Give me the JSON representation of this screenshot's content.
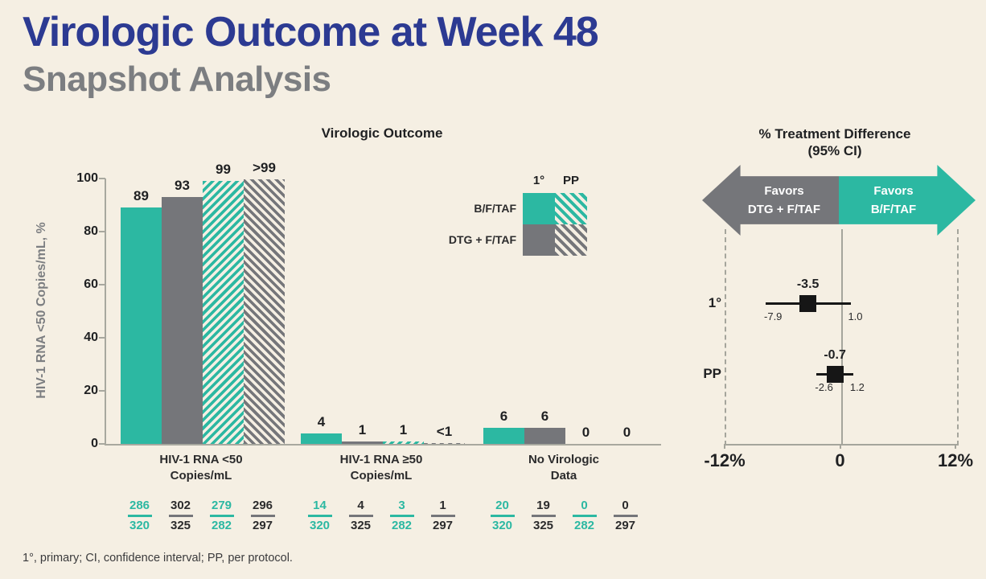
{
  "page": {
    "title": "Virologic Outcome at Week 48",
    "subtitle": "Snapshot Analysis",
    "footnote": "1°, primary; CI, confidence interval; PP, per protocol."
  },
  "colors": {
    "background": "#f5efe3",
    "title_navy": "#2c3a92",
    "subtitle_gray": "#7c7e81",
    "teal": "#2cb8a2",
    "gray": "#75767a",
    "ink": "#1f2022",
    "axis_gray": "#a8a89f",
    "arrow_text": "#ffffff",
    "forest_marker": "#161616"
  },
  "chart_data": [
    {
      "type": "bar",
      "title": "Virologic Outcome",
      "ylabel": "HIV-1 RNA <50 Copies/mL, %",
      "ylim": [
        0,
        100
      ],
      "yticks": [
        0,
        20,
        40,
        60,
        80,
        100
      ],
      "series": [
        "B/F/TAF 1°",
        "DTG + F/TAF 1°",
        "B/F/TAF PP",
        "DTG + F/TAF PP"
      ],
      "legend": {
        "col_headers": [
          "1°",
          "PP"
        ],
        "rows": [
          {
            "label": "B/F/TAF",
            "color": "teal"
          },
          {
            "label": "DTG + F/TAF",
            "color": "gray"
          }
        ]
      },
      "groups": [
        {
          "category": [
            "HIV-1 RNA <50",
            "Copies/mL"
          ],
          "bars": [
            {
              "display": "89",
              "value": 89,
              "style": "teal-solid",
              "fraction": {
                "n": "286",
                "d": "320"
              }
            },
            {
              "display": "93",
              "value": 93,
              "style": "gray-solid",
              "fraction": {
                "n": "302",
                "d": "325"
              }
            },
            {
              "display": "99",
              "value": 99,
              "style": "teal-hatch",
              "fraction": {
                "n": "279",
                "d": "282"
              }
            },
            {
              "display": ">99",
              "value": 99.7,
              "style": "gray-hatch",
              "fraction": {
                "n": "296",
                "d": "297"
              }
            }
          ]
        },
        {
          "category": [
            "HIV-1 RNA ≥50",
            "Copies/mL"
          ],
          "bars": [
            {
              "display": "4",
              "value": 4,
              "style": "teal-solid",
              "fraction": {
                "n": "14",
                "d": "320"
              }
            },
            {
              "display": "1",
              "value": 1,
              "style": "gray-solid",
              "fraction": {
                "n": "4",
                "d": "325"
              }
            },
            {
              "display": "1",
              "value": 1,
              "style": "teal-hatch",
              "fraction": {
                "n": "3",
                "d": "282"
              }
            },
            {
              "display": "<1",
              "value": 0.3,
              "style": "gray-hatch",
              "fraction": {
                "n": "1",
                "d": "297"
              }
            }
          ]
        },
        {
          "category": [
            "No Virologic",
            "Data"
          ],
          "bars": [
            {
              "display": "6",
              "value": 6,
              "style": "teal-solid",
              "fraction": {
                "n": "20",
                "d": "320"
              }
            },
            {
              "display": "6",
              "value": 6,
              "style": "gray-solid",
              "fraction": {
                "n": "19",
                "d": "325"
              }
            },
            {
              "display": "0",
              "value": 0,
              "style": "teal-hatch",
              "fraction": {
                "n": "0",
                "d": "282"
              }
            },
            {
              "display": "0",
              "value": 0,
              "style": "gray-hatch",
              "fraction": {
                "n": "0",
                "d": "297"
              }
            }
          ]
        }
      ]
    },
    {
      "type": "forest",
      "title_line1": "% Treatment Difference",
      "title_line2": "(95% CI)",
      "arrow_left": {
        "line1": "Favors",
        "line2": "DTG + F/TAF",
        "color": "gray"
      },
      "arrow_right": {
        "line1": "Favors",
        "line2": "B/F/TAF",
        "color": "teal"
      },
      "xlim": [
        -12,
        12
      ],
      "xticks": [
        "-12%",
        "0",
        "12%"
      ],
      "rows": [
        {
          "label": "1°",
          "estimate": -3.5,
          "ci_low": -7.9,
          "ci_high": 1.0,
          "estimate_display": "-3.5",
          "ci_low_display": "-7.9",
          "ci_high_display": "1.0"
        },
        {
          "label": "PP",
          "estimate": -0.7,
          "ci_low": -2.6,
          "ci_high": 1.2,
          "estimate_display": "-0.7",
          "ci_low_display": "-2.6",
          "ci_high_display": "1.2"
        }
      ]
    }
  ]
}
